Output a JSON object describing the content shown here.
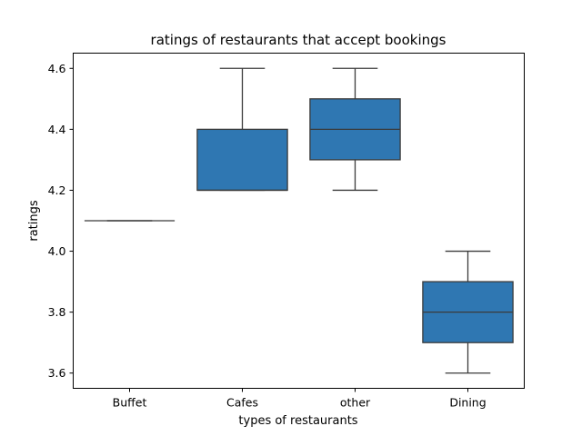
{
  "chart_data": {
    "type": "box",
    "title": "ratings of restaurants that accept bookings",
    "xlabel": "types of restaurants",
    "ylabel": "ratings",
    "ylim": [
      3.55,
      4.65
    ],
    "yticks": [
      "3.6",
      "3.8",
      "4.0",
      "4.2",
      "4.4",
      "4.6"
    ],
    "grid": false,
    "box_color": "#2f77b2",
    "line_color": "#3a3a3a",
    "categories": [
      "Buffet",
      "Cafes",
      "other",
      "Dining"
    ],
    "boxes": [
      {
        "category": "Buffet",
        "whisker_low": 4.1,
        "q1": 4.1,
        "median": 4.1,
        "q3": 4.1,
        "whisker_high": 4.1
      },
      {
        "category": "Cafes",
        "whisker_low": 4.2,
        "q1": 4.2,
        "median": 4.2,
        "q3": 4.4,
        "whisker_high": 4.6
      },
      {
        "category": "other",
        "whisker_low": 4.2,
        "q1": 4.3,
        "median": 4.4,
        "q3": 4.5,
        "whisker_high": 4.6
      },
      {
        "category": "Dining",
        "whisker_low": 3.6,
        "q1": 3.7,
        "median": 3.8,
        "q3": 3.9,
        "whisker_high": 4.0
      }
    ]
  }
}
